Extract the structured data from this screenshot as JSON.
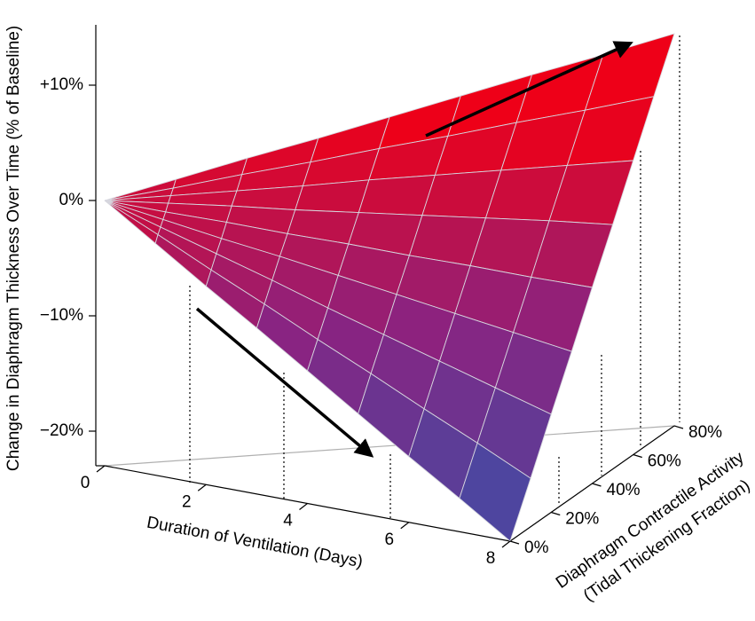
{
  "chart_data": {
    "type": "surface",
    "z_label": "Change in Diaphragm Thickness Over Time (% of Baseline)",
    "x_label": "Duration of Ventilation (Days)",
    "y_label": [
      "Diaphragm Contractile Activity",
      "(Tidal Thickening Fraction)"
    ],
    "x": [
      0,
      1,
      2,
      3,
      4,
      5,
      6,
      7,
      8
    ],
    "y": [
      0,
      10,
      20,
      30,
      40,
      50,
      60,
      70,
      80
    ],
    "z": [
      [
        0,
        -2.9,
        -5.8,
        -8.6,
        -11.5,
        -14.4,
        -17.3,
        -20.1,
        -23
      ],
      [
        0,
        -2.3,
        -4.7,
        -7.0,
        -9.4,
        -11.7,
        -14.1,
        -16.4,
        -18.8
      ],
      [
        0,
        -1.8,
        -3.6,
        -5.4,
        -7.3,
        -9.1,
        -10.9,
        -12.7,
        -14.5
      ],
      [
        0,
        -1.3,
        -2.6,
        -3.8,
        -5.1,
        -6.4,
        -7.7,
        -9.0,
        -10.3
      ],
      [
        0,
        -0.8,
        -1.5,
        -2.3,
        -3,
        -3.8,
        -4.5,
        -5.3,
        -6
      ],
      [
        0,
        -0.2,
        -0.4,
        -0.7,
        -0.9,
        -1.1,
        -1.3,
        -1.5,
        -1.8
      ],
      [
        0,
        0.3,
        0.6,
        0.9,
        1.3,
        1.6,
        1.9,
        2.2,
        2.5
      ],
      [
        0,
        0.8,
        1.7,
        2.5,
        3.4,
        4.2,
        5.1,
        5.9,
        6.8
      ],
      [
        0,
        1.4,
        2.8,
        4.1,
        5.5,
        6.9,
        8.3,
        9.6,
        11
      ]
    ],
    "xlim": [
      0,
      8
    ],
    "ylim": [
      0,
      80
    ],
    "zlim": [
      -23,
      15
    ],
    "xticks": [
      0,
      2,
      4,
      6,
      8
    ],
    "yticks": [
      {
        "value": 0,
        "label": "0%"
      },
      {
        "value": 20,
        "label": "20%"
      },
      {
        "value": 40,
        "label": "40%"
      },
      {
        "value": 60,
        "label": "60%"
      },
      {
        "value": 80,
        "label": "80%"
      }
    ],
    "zticks": [
      {
        "value": -20,
        "label": "−20%"
      },
      {
        "value": -10,
        "label": "−10%"
      },
      {
        "value": 0,
        "label": "0%"
      },
      {
        "value": 10,
        "label": "+10%"
      }
    ],
    "colorscale": [
      "#3b50a8",
      "#8a2381",
      "#ee0018"
    ],
    "mesh_color": "#d6d6de"
  }
}
